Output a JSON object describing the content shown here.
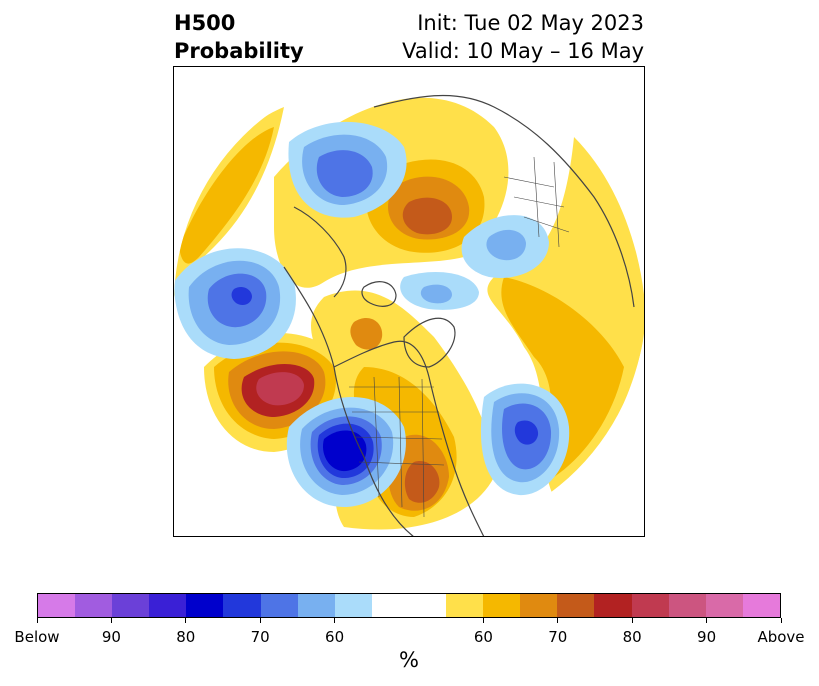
{
  "title": {
    "left_line1": "H500",
    "left_line2": "Probability",
    "right_line1": "Init: Tue 02 May 2023",
    "right_line2": "Valid: 10 May – 16 May"
  },
  "colorbar": {
    "unit": "%",
    "segments": [
      {
        "color": "#d67ae8"
      },
      {
        "color": "#a15ce0"
      },
      {
        "color": "#6b40d8"
      },
      {
        "color": "#3a20d6"
      },
      {
        "color": "#0000cc"
      },
      {
        "color": "#2238db"
      },
      {
        "color": "#4e74e6"
      },
      {
        "color": "#78b0f0"
      },
      {
        "color": "#aadcfa"
      },
      {
        "color": "#ffffff"
      },
      {
        "color": "#ffffff"
      },
      {
        "color": "#ffe04a"
      },
      {
        "color": "#f5b800"
      },
      {
        "color": "#e08a10"
      },
      {
        "color": "#c45a1a"
      },
      {
        "color": "#b22222"
      },
      {
        "color": "#c03a50"
      },
      {
        "color": "#cc5580"
      },
      {
        "color": "#d96aa8"
      },
      {
        "color": "#e67adb"
      }
    ],
    "tick_labels": [
      "Below",
      "90",
      "80",
      "70",
      "60",
      "60",
      "70",
      "80",
      "90",
      "Above"
    ]
  },
  "map": {
    "description_colors": {
      "below_strong": "#0000cc",
      "below_mid": "#4e74e6",
      "below_weak": "#aadcfa",
      "above_weak": "#ffe04a",
      "above_mid": "#f5b800",
      "above_strong": "#b22222"
    }
  }
}
